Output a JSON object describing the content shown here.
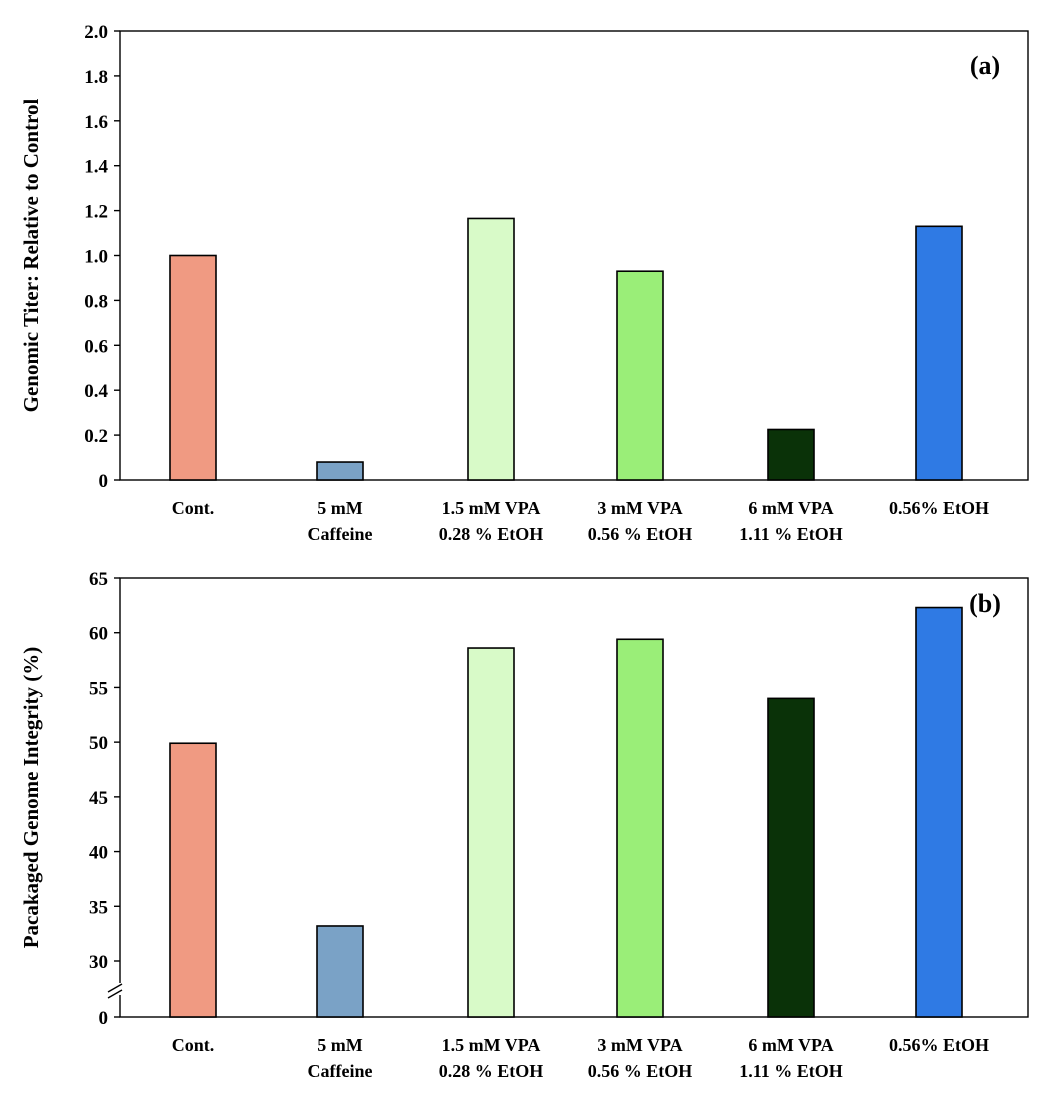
{
  "chart_data": [
    {
      "type": "bar",
      "panel_label": "(a)",
      "ylabel": "Genomic Titer: Relative  to Control",
      "ylim": [
        0,
        2.0
      ],
      "yticks": [
        "0",
        "0.2",
        "0.4",
        "0.6",
        "0.8",
        "1.0",
        "1.2",
        "1.4",
        "1.6",
        "1.8",
        "2.0"
      ],
      "ytick_values": [
        0,
        0.2,
        0.4,
        0.6,
        0.8,
        1.0,
        1.2,
        1.4,
        1.6,
        1.8,
        2.0
      ],
      "grid": false,
      "categories": [
        [
          "Cont."
        ],
        [
          "5 mM",
          "Caffeine"
        ],
        [
          "1.5 mM VPA",
          "0.28 % EtOH"
        ],
        [
          "3 mM VPA",
          "0.56 % EtOH"
        ],
        [
          "6 mM VPA",
          "1.11 % EtOH"
        ],
        [
          "0.56% EtOH"
        ]
      ],
      "values": [
        1.0,
        0.08,
        1.165,
        0.93,
        0.225,
        1.13
      ],
      "colors": [
        "#f09a82",
        "#7aa2c6",
        "#d8fac8",
        "#9aee78",
        "#0a3208",
        "#2f7ae4"
      ]
    },
    {
      "type": "bar",
      "panel_label": "(b)",
      "ylabel": "Pacakaged Genome Integrity (%)",
      "ylim": [
        25,
        65
      ],
      "axis_break": true,
      "yticks": [
        "0",
        "30",
        "35",
        "40",
        "45",
        "50",
        "55",
        "60",
        "65"
      ],
      "ytick_values": [
        null,
        30,
        35,
        40,
        45,
        50,
        55,
        60,
        65
      ],
      "grid": false,
      "categories": [
        [
          "Cont."
        ],
        [
          "5 mM",
          "Caffeine"
        ],
        [
          "1.5 mM VPA",
          "0.28 % EtOH"
        ],
        [
          "3 mM VPA",
          "0.56 % EtOH"
        ],
        [
          "6 mM VPA",
          "1.11 % EtOH"
        ],
        [
          "0.56% EtOH"
        ]
      ],
      "values": [
        49.9,
        33.2,
        58.6,
        59.4,
        54.0,
        62.3
      ],
      "colors": [
        "#f09a82",
        "#7aa2c6",
        "#d8fac8",
        "#9aee78",
        "#0a3208",
        "#2f7ae4"
      ]
    }
  ]
}
